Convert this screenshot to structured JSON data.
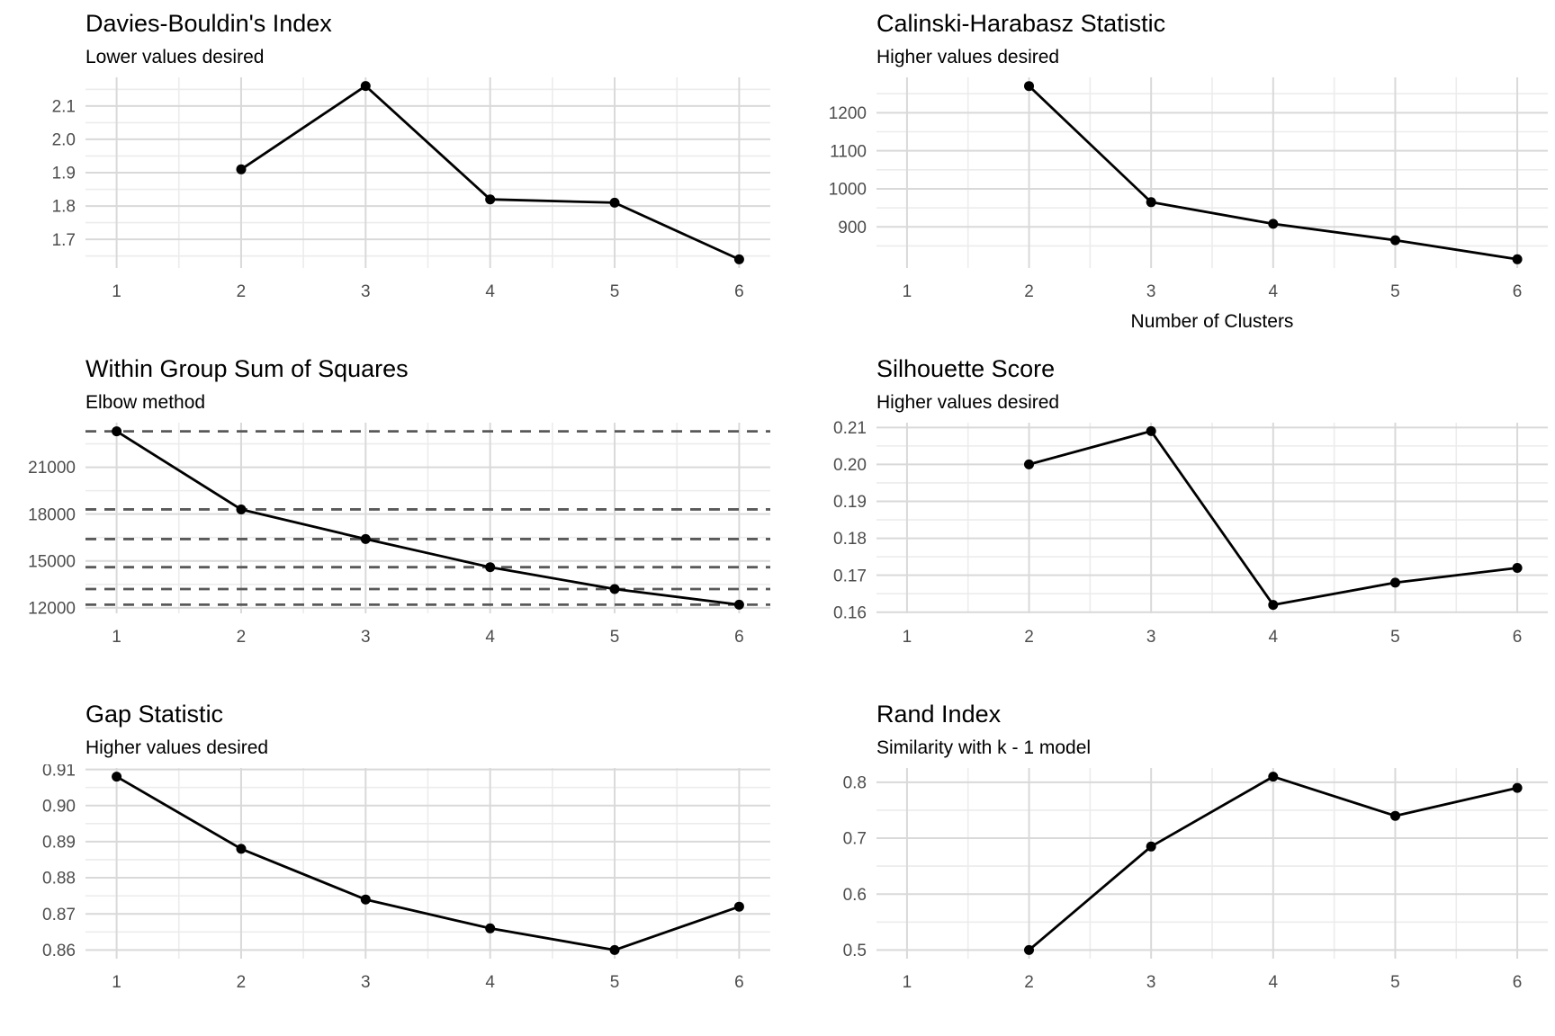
{
  "page": {
    "background": "#ffffff",
    "description": "Cluster validation metrics dashboard, six line charts"
  },
  "styles": {
    "line_color": "#000000",
    "point_color": "#000000",
    "grid_major_color": "#d9d9d9",
    "grid_minor_color": "#ececec",
    "tick_label_color": "#4d4d4d",
    "dashed_line_color": "#595959",
    "title_color": "#000000",
    "axis_title_color": "#000000"
  },
  "chart_data": [
    {
      "id": "davies-bouldin",
      "type": "line",
      "title": "Davies-Bouldin's Index",
      "subtitle": "Lower values desired",
      "xlabel": "",
      "ylabel": "",
      "x": [
        2,
        3,
        4,
        5,
        6
      ],
      "y": [
        1.91,
        2.16,
        1.82,
        1.81,
        1.64
      ],
      "xlim": [
        0.75,
        6.25
      ],
      "ylim": [
        1.614,
        2.186
      ],
      "xticks": [
        1,
        2,
        3,
        4,
        5,
        6
      ],
      "xtick_labels": [
        "1",
        "2",
        "3",
        "4",
        "5",
        "6"
      ],
      "xminor": [
        1.5,
        2.5,
        3.5,
        4.5,
        5.5
      ],
      "yticks": [
        1.7,
        1.8,
        1.9,
        2.0,
        2.1
      ],
      "ytick_labels": [
        "1.7",
        "1.8",
        "1.9",
        "2.0",
        "2.1"
      ],
      "yminor": [
        1.65,
        1.75,
        1.85,
        1.95,
        2.05,
        2.15
      ],
      "dashed_hlines": [],
      "grid": true,
      "legend": "none"
    },
    {
      "id": "calinski-harabasz",
      "type": "line",
      "title": "Calinski-Harabasz Statistic",
      "subtitle": "Higher values desired",
      "xlabel": "Number of Clusters",
      "ylabel": "",
      "x": [
        2,
        3,
        4,
        5,
        6
      ],
      "y": [
        1270,
        965,
        908,
        865,
        815
      ],
      "xlim": [
        0.75,
        6.25
      ],
      "ylim": [
        792,
        1293
      ],
      "xticks": [
        1,
        2,
        3,
        4,
        5,
        6
      ],
      "xtick_labels": [
        "1",
        "2",
        "3",
        "4",
        "5",
        "6"
      ],
      "xminor": [
        1.5,
        2.5,
        3.5,
        4.5,
        5.5
      ],
      "yticks": [
        900,
        1000,
        1100,
        1200
      ],
      "ytick_labels": [
        "900",
        "1000",
        "1100",
        "1200"
      ],
      "yminor": [
        850,
        950,
        1050,
        1150,
        1250
      ],
      "dashed_hlines": [],
      "grid": true,
      "legend": "none"
    },
    {
      "id": "wss",
      "type": "line",
      "title": "Within Group Sum of Squares",
      "subtitle": "Elbow method",
      "xlabel": "",
      "ylabel": "",
      "x": [
        1,
        2,
        3,
        4,
        5,
        6
      ],
      "y": [
        23300,
        18300,
        16400,
        14600,
        13200,
        12200
      ],
      "xlim": [
        0.75,
        6.25
      ],
      "ylim": [
        11645,
        23855
      ],
      "xticks": [
        1,
        2,
        3,
        4,
        5,
        6
      ],
      "xtick_labels": [
        "1",
        "2",
        "3",
        "4",
        "5",
        "6"
      ],
      "xminor": [
        1.5,
        2.5,
        3.5,
        4.5,
        5.5
      ],
      "yticks": [
        12000,
        15000,
        18000,
        21000
      ],
      "ytick_labels": [
        "12000",
        "15000",
        "18000",
        "21000"
      ],
      "yminor": [
        13500,
        16500,
        19500,
        22500
      ],
      "dashed_hlines": [
        23300,
        18300,
        16400,
        14600,
        13200,
        12200
      ],
      "grid": true,
      "legend": "none"
    },
    {
      "id": "silhouette",
      "type": "line",
      "title": "Silhouette Score",
      "subtitle": "Higher values desired",
      "xlabel": "",
      "ylabel": "",
      "x": [
        2,
        3,
        4,
        5,
        6
      ],
      "y": [
        0.2,
        0.209,
        0.162,
        0.168,
        0.172
      ],
      "xlim": [
        0.75,
        6.25
      ],
      "ylim": [
        0.1597,
        0.2113
      ],
      "xticks": [
        1,
        2,
        3,
        4,
        5,
        6
      ],
      "xtick_labels": [
        "1",
        "2",
        "3",
        "4",
        "5",
        "6"
      ],
      "xminor": [
        1.5,
        2.5,
        3.5,
        4.5,
        5.5
      ],
      "yticks": [
        0.16,
        0.17,
        0.18,
        0.19,
        0.2,
        0.21
      ],
      "ytick_labels": [
        "0.16",
        "0.17",
        "0.18",
        "0.19",
        "0.20",
        "0.21"
      ],
      "yminor": [
        0.165,
        0.175,
        0.185,
        0.195,
        0.205
      ],
      "dashed_hlines": [],
      "grid": true,
      "legend": "none"
    },
    {
      "id": "gap-statistic",
      "type": "line",
      "title": "Gap Statistic",
      "subtitle": "Higher values desired",
      "xlabel": "",
      "ylabel": "",
      "x": [
        1,
        2,
        3,
        4,
        5,
        6
      ],
      "y": [
        0.908,
        0.888,
        0.874,
        0.866,
        0.86,
        0.872
      ],
      "xlim": [
        0.75,
        6.25
      ],
      "ylim": [
        0.8576,
        0.9104
      ],
      "xticks": [
        1,
        2,
        3,
        4,
        5,
        6
      ],
      "xtick_labels": [
        "1",
        "2",
        "3",
        "4",
        "5",
        "6"
      ],
      "xminor": [
        1.5,
        2.5,
        3.5,
        4.5,
        5.5
      ],
      "yticks": [
        0.86,
        0.87,
        0.88,
        0.89,
        0.9,
        0.91
      ],
      "ytick_labels": [
        "0.86",
        "0.87",
        "0.88",
        "0.89",
        "0.90",
        "0.91"
      ],
      "yminor": [
        0.865,
        0.875,
        0.885,
        0.895,
        0.905
      ],
      "dashed_hlines": [],
      "grid": true,
      "legend": "none"
    },
    {
      "id": "rand-index",
      "type": "line",
      "title": "Rand Index",
      "subtitle": "Similarity with k - 1 model",
      "xlabel": "",
      "ylabel": "",
      "x": [
        2,
        3,
        4,
        5,
        6
      ],
      "y": [
        0.5,
        0.685,
        0.81,
        0.74,
        0.79
      ],
      "xlim": [
        0.75,
        6.25
      ],
      "ylim": [
        0.4845,
        0.8255
      ],
      "xticks": [
        1,
        2,
        3,
        4,
        5,
        6
      ],
      "xtick_labels": [
        "1",
        "2",
        "3",
        "4",
        "5",
        "6"
      ],
      "xminor": [
        1.5,
        2.5,
        3.5,
        4.5,
        5.5
      ],
      "yticks": [
        0.5,
        0.6,
        0.7,
        0.8
      ],
      "ytick_labels": [
        "0.5",
        "0.6",
        "0.7",
        "0.8"
      ],
      "yminor": [
        0.55,
        0.65,
        0.75
      ],
      "dashed_hlines": [],
      "grid": true,
      "legend": "none"
    }
  ]
}
